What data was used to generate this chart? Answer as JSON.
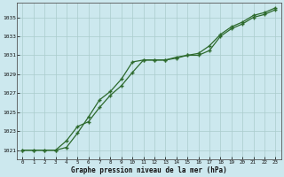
{
  "title": "Graphe pression niveau de la mer (hPa)",
  "background_color": "#cce8ee",
  "plot_bg_color": "#cce8ee",
  "grid_color": "#aacccc",
  "line_color": "#2d6a2d",
  "marker_color": "#2d6a2d",
  "xlim": [
    -0.5,
    23.5
  ],
  "ylim": [
    1020.0,
    1036.5
  ],
  "xticks": [
    0,
    1,
    2,
    3,
    4,
    5,
    6,
    7,
    8,
    9,
    10,
    11,
    12,
    13,
    14,
    15,
    16,
    17,
    18,
    19,
    20,
    21,
    22,
    23
  ],
  "yticks": [
    1021,
    1023,
    1025,
    1027,
    1029,
    1031,
    1033,
    1035
  ],
  "series1_x": [
    0,
    1,
    2,
    3,
    4,
    5,
    6,
    7,
    8,
    9,
    10,
    11,
    12,
    13,
    14,
    15,
    16,
    17,
    18,
    19,
    20,
    21,
    22,
    23
  ],
  "series1_y": [
    1021.0,
    1021.0,
    1021.0,
    1021.0,
    1021.3,
    1022.8,
    1024.5,
    1026.3,
    1027.2,
    1028.5,
    1030.3,
    1030.5,
    1030.5,
    1030.5,
    1030.7,
    1031.0,
    1031.0,
    1031.5,
    1033.0,
    1033.8,
    1034.3,
    1035.0,
    1035.3,
    1035.8
  ],
  "series2_x": [
    0,
    1,
    2,
    3,
    4,
    5,
    6,
    7,
    8,
    9,
    10,
    11,
    12,
    13,
    14,
    15,
    16,
    17,
    18,
    19,
    20,
    21,
    22,
    23
  ],
  "series2_y": [
    1021.0,
    1021.0,
    1021.0,
    1021.0,
    1022.0,
    1023.5,
    1024.0,
    1025.5,
    1026.8,
    1027.8,
    1029.2,
    1030.5,
    1030.5,
    1030.5,
    1030.8,
    1031.0,
    1031.2,
    1032.0,
    1033.2,
    1034.0,
    1034.5,
    1035.2,
    1035.5,
    1036.0
  ]
}
